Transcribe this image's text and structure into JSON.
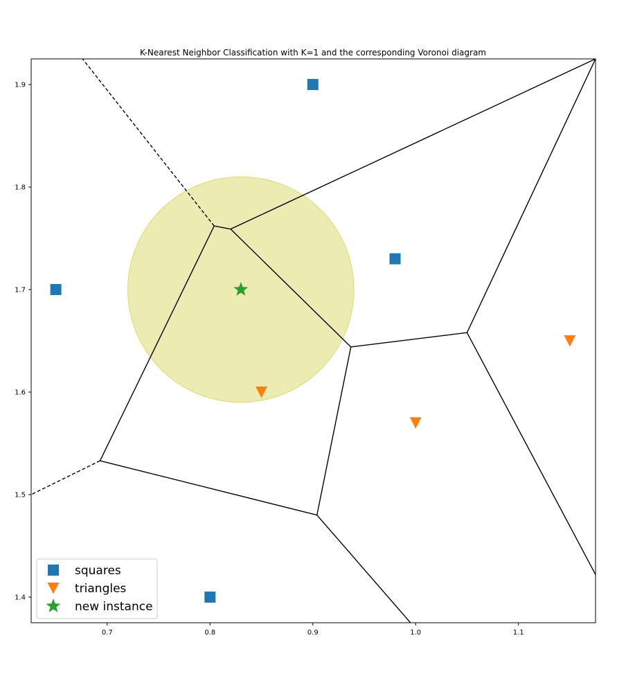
{
  "chart_data": {
    "type": "scatter",
    "title": "K-Nearest Neighbor Classification with K=1 and the corresponding Voronoi diagram",
    "xlabel": "",
    "ylabel": "",
    "xlim": [
      0.626,
      1.175
    ],
    "ylim": [
      1.375,
      1.925
    ],
    "x_ticks": [
      0.7,
      0.8,
      0.9,
      1.0,
      1.1
    ],
    "x_tick_labels": [
      "0.7",
      "0.8",
      "0.9",
      "1.0",
      "1.1"
    ],
    "y_ticks": [
      1.4,
      1.5,
      1.6,
      1.7,
      1.8,
      1.9
    ],
    "y_tick_labels": [
      "1.4",
      "1.5",
      "1.6",
      "1.7",
      "1.8",
      "1.9"
    ],
    "grid": false,
    "legend_position": "lower-left",
    "series": [
      {
        "name": "squares",
        "marker": "square",
        "color": "#1f77b4",
        "points": [
          [
            0.65,
            1.7
          ],
          [
            0.8,
            1.4
          ],
          [
            0.9,
            1.9
          ],
          [
            0.98,
            1.73
          ]
        ]
      },
      {
        "name": "triangles",
        "marker": "triangle-down",
        "color": "#ff7f0e",
        "points": [
          [
            0.85,
            1.6
          ],
          [
            1.0,
            1.57
          ],
          [
            1.15,
            1.65
          ]
        ]
      },
      {
        "name": "new instance",
        "marker": "star",
        "color": "#2ca02c",
        "points": [
          [
            0.83,
            1.7
          ]
        ]
      }
    ],
    "neighborhood_circle": {
      "center": [
        0.83,
        1.7
      ],
      "radius": 0.11,
      "color": "#d4d455"
    },
    "voronoi_vertices": [
      [
        0.804,
        1.762
      ],
      [
        0.82,
        1.759
      ],
      [
        0.937,
        1.644
      ],
      [
        1.05,
        1.658
      ],
      [
        0.904,
        1.48
      ],
      [
        0.693,
        1.533
      ]
    ],
    "voronoi_edges": [
      [
        [
          0.804,
          1.762
        ],
        [
          0.82,
          1.759
        ]
      ],
      [
        [
          0.82,
          1.759
        ],
        [
          0.937,
          1.644
        ]
      ],
      [
        [
          0.937,
          1.644
        ],
        [
          1.05,
          1.658
        ]
      ],
      [
        [
          0.937,
          1.644
        ],
        [
          0.904,
          1.48
        ]
      ],
      [
        [
          0.904,
          1.48
        ],
        [
          0.693,
          1.533
        ]
      ],
      [
        [
          0.693,
          1.533
        ],
        [
          0.804,
          1.762
        ]
      ],
      [
        [
          0.82,
          1.759
        ],
        [
          1.175,
          1.925
        ]
      ],
      [
        [
          1.05,
          1.658
        ],
        [
          1.175,
          1.925
        ]
      ],
      [
        [
          1.05,
          1.658
        ],
        [
          1.175,
          1.422
        ]
      ],
      [
        [
          0.904,
          1.48
        ],
        [
          0.995,
          1.375
        ]
      ]
    ],
    "voronoi_ridges_infinite": [
      [
        [
          0.804,
          1.762
        ],
        [
          0.676,
          1.925
        ]
      ],
      [
        [
          0.693,
          1.533
        ],
        [
          0.626,
          1.5
        ]
      ]
    ]
  }
}
